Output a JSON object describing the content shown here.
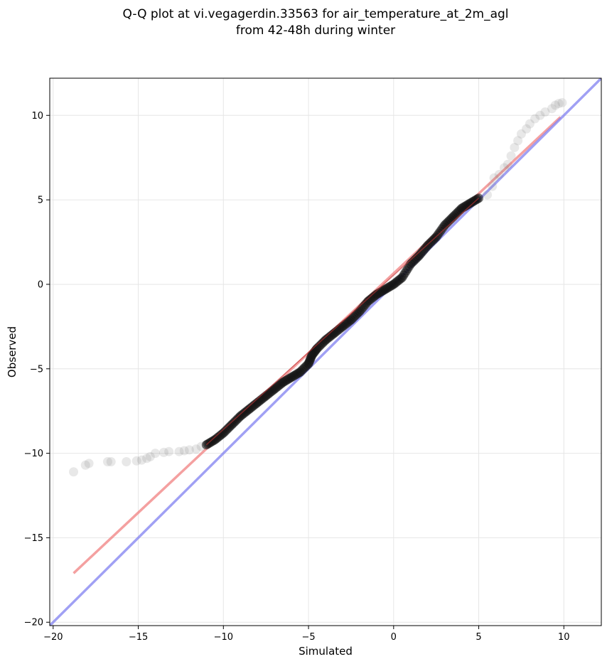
{
  "chart_data": {
    "type": "scatter",
    "title_lines": [
      "Q-Q plot at vi.vegagerdin.33563 for air_temperature_at_2m_agl",
      "from 42-48h during winter"
    ],
    "xlabel": "Simulated",
    "ylabel": "Observed",
    "xlim": [
      -20.2,
      12.2
    ],
    "ylim": [
      -20.2,
      12.2
    ],
    "x_ticks": [
      -20,
      -15,
      -10,
      -5,
      0,
      5,
      10
    ],
    "y_ticks": [
      -20,
      -15,
      -10,
      -5,
      0,
      5,
      10
    ],
    "x_tick_labels": [
      "−20",
      "−15",
      "−10",
      "−5",
      "0",
      "5",
      "10"
    ],
    "y_tick_labels": [
      "−20",
      "−15",
      "−10",
      "−5",
      "0",
      "5",
      "10"
    ],
    "grid": true,
    "series": [
      {
        "role": "tail-quantiles",
        "color": "#808080",
        "points": [
          [
            -18.8,
            -11.1
          ],
          [
            -18.1,
            -10.7
          ],
          [
            -17.9,
            -10.6
          ],
          [
            -16.8,
            -10.5
          ],
          [
            -16.6,
            -10.5
          ],
          [
            -15.7,
            -10.5
          ],
          [
            -15.1,
            -10.45
          ],
          [
            -14.8,
            -10.4
          ],
          [
            -14.5,
            -10.3
          ],
          [
            -14.3,
            -10.2
          ],
          [
            -14.0,
            -10.0
          ],
          [
            -13.5,
            -9.95
          ],
          [
            -13.2,
            -9.9
          ],
          [
            -12.6,
            -9.9
          ],
          [
            -12.3,
            -9.85
          ],
          [
            -12.0,
            -9.8
          ],
          [
            -11.6,
            -9.75
          ],
          [
            -11.3,
            -9.6
          ],
          [
            -11.0,
            -9.5
          ],
          [
            5.5,
            5.3
          ],
          [
            5.8,
            5.8
          ],
          [
            5.9,
            6.3
          ],
          [
            6.2,
            6.5
          ],
          [
            6.5,
            6.9
          ],
          [
            6.7,
            7.1
          ],
          [
            6.9,
            7.6
          ],
          [
            7.1,
            8.1
          ],
          [
            7.3,
            8.5
          ],
          [
            7.5,
            8.9
          ],
          [
            7.8,
            9.2
          ],
          [
            8.0,
            9.5
          ],
          [
            8.3,
            9.8
          ],
          [
            8.6,
            10.0
          ],
          [
            8.9,
            10.2
          ],
          [
            9.3,
            10.4
          ],
          [
            9.5,
            10.6
          ],
          [
            9.7,
            10.7
          ],
          [
            9.9,
            10.75
          ]
        ]
      },
      {
        "role": "central-quantiles",
        "color": "#111111",
        "points": [
          [
            -11.0,
            -9.5
          ],
          [
            -10.5,
            -9.2
          ],
          [
            -10.0,
            -8.8
          ],
          [
            -9.5,
            -8.3
          ],
          [
            -9.0,
            -7.8
          ],
          [
            -8.5,
            -7.4
          ],
          [
            -8.0,
            -7.0
          ],
          [
            -7.5,
            -6.6
          ],
          [
            -7.0,
            -6.2
          ],
          [
            -6.5,
            -5.8
          ],
          [
            -6.0,
            -5.5
          ],
          [
            -5.5,
            -5.2
          ],
          [
            -5.0,
            -4.7
          ],
          [
            -4.8,
            -4.2
          ],
          [
            -4.5,
            -3.8
          ],
          [
            -4.0,
            -3.3
          ],
          [
            -3.5,
            -2.9
          ],
          [
            -3.0,
            -2.5
          ],
          [
            -2.5,
            -2.1
          ],
          [
            -2.0,
            -1.6
          ],
          [
            -1.5,
            -1.0
          ],
          [
            -1.0,
            -0.6
          ],
          [
            -0.5,
            -0.3
          ],
          [
            0.0,
            0.0
          ],
          [
            0.5,
            0.4
          ],
          [
            1.0,
            1.2
          ],
          [
            1.5,
            1.7
          ],
          [
            2.0,
            2.3
          ],
          [
            2.5,
            2.8
          ],
          [
            3.0,
            3.5
          ],
          [
            3.5,
            4.0
          ],
          [
            4.0,
            4.5
          ],
          [
            4.5,
            4.8
          ],
          [
            5.0,
            5.1
          ]
        ]
      }
    ],
    "lines": [
      {
        "role": "fitted-line",
        "color": "#f08080",
        "x": [
          -18.8,
          9.8
        ],
        "y": [
          -17.1,
          9.9
        ]
      },
      {
        "role": "identity-line",
        "color": "#8080f0",
        "x": [
          -20.2,
          12.2
        ],
        "y": [
          -20.2,
          12.2
        ]
      }
    ]
  }
}
